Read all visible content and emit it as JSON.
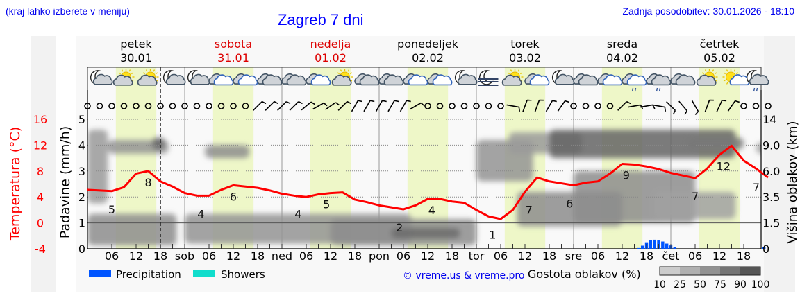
{
  "header": {
    "hint": "(kraj lahko izberete v meniju)",
    "title": "Zagreb 7 dni",
    "updated": "Zadnja posodobitev: 30.01.2026 - 18:10"
  },
  "days": [
    {
      "name": "petek",
      "date": "30.01",
      "weekend": false
    },
    {
      "name": "sobota",
      "date": "31.01",
      "weekend": true
    },
    {
      "name": "nedelja",
      "date": "01.02",
      "weekend": true
    },
    {
      "name": "ponedeljek",
      "date": "02.02",
      "weekend": false
    },
    {
      "name": "torek",
      "date": "03.02",
      "weekend": false
    },
    {
      "name": "sreda",
      "date": "04.02",
      "weekend": false
    },
    {
      "name": "četrtek",
      "date": "05.02",
      "weekend": false
    }
  ],
  "weather_icons": [
    "night-partly-cloudy",
    "sun-cloud",
    "sun-cloud",
    "night-partly-cloudy",
    "night-partly-cloudy",
    "cloudy",
    "cloudy",
    "overcast",
    "overcast",
    "cloudy",
    "sun-cloud",
    "overcast",
    "overcast",
    "cloudy",
    "cloudy",
    "night-partly-cloudy",
    "night-fog",
    "sun-cloud",
    "cloudy",
    "night-partly-cloudy",
    "overcast",
    "cloudy",
    "cloudy-drizzle",
    "overcast-drizzle",
    "overcast",
    "sun-cloud",
    "sun-small-cloud",
    "night-cloud-drizzle"
  ],
  "wind": [
    "calm",
    "calm",
    "calm",
    "calm",
    "calm",
    "calm",
    "calm",
    "calm",
    "calm",
    "calm",
    "calm",
    "calm",
    "calm",
    "calm",
    45,
    45,
    45,
    45,
    50,
    60,
    55,
    45,
    30,
    30,
    30,
    30,
    30,
    60,
    "calm",
    "calm",
    "calm",
    "calm",
    "calm",
    "calm",
    "calm",
    100,
    20,
    20,
    30,
    35,
    "calm",
    "calm",
    "calm",
    "calm",
    45,
    80,
    80,
    100,
    135,
    140,
    150,
    20,
    25,
    35,
    "calm",
    "calm",
    "calm"
  ],
  "colors": {
    "temperature": "#ff0000",
    "precipitation": "#0055ff",
    "showers": "#11ddcc",
    "daylight": "#eef7c8",
    "weekend": "#dd0000",
    "link": "#0000ee"
  },
  "chart_data": {
    "type": "line",
    "x_unit": "hour from 30.01 00:00",
    "x_tick_labels": [
      "06",
      "12",
      "18",
      "sob",
      "06",
      "12",
      "18",
      "ned",
      "06",
      "12",
      "18",
      "pon",
      "06",
      "12",
      "18",
      "tor",
      "06",
      "12",
      "18",
      "sre",
      "06",
      "12",
      "18",
      "čet",
      "06",
      "12",
      "18"
    ],
    "current_time_label_hour": 18,
    "y_left_temp": {
      "label": "Temperatura (°C)",
      "ticks": [
        16,
        12,
        8,
        4,
        0,
        -4
      ]
    },
    "y_left_precip": {
      "label": "Padavine (mm/h)",
      "ticks": [
        5,
        4,
        3,
        2,
        1,
        0
      ]
    },
    "y_right_cloud": {
      "label": "Višina oblakov (km)",
      "ticks": [
        14,
        9.0,
        6.0,
        3.5,
        1.5,
        0
      ]
    },
    "temperature": {
      "hours": [
        0,
        6,
        9,
        12,
        15,
        18,
        21,
        24,
        27,
        30,
        33,
        36,
        39,
        42,
        45,
        48,
        51,
        54,
        57,
        60,
        63,
        66,
        69,
        72,
        75,
        78,
        81,
        84,
        87,
        90,
        93,
        96,
        99,
        102,
        105,
        108,
        111,
        114,
        117,
        120,
        123,
        126,
        129,
        132,
        135,
        138,
        141,
        144,
        147,
        150,
        153,
        156,
        159,
        162,
        165,
        168
      ],
      "values": [
        5.1,
        4.9,
        5.5,
        7.6,
        8.0,
        6.4,
        5.6,
        4.6,
        4.2,
        4.2,
        5.1,
        5.8,
        5.6,
        5.4,
        5.0,
        4.5,
        4.2,
        4.0,
        4.4,
        4.6,
        4.7,
        3.6,
        3.2,
        2.7,
        2.4,
        2.1,
        2.7,
        3.7,
        3.7,
        3.3,
        3.1,
        2.0,
        1.0,
        0.6,
        2.0,
        4.8,
        7.0,
        6.4,
        6.1,
        5.8,
        6.2,
        6.4,
        7.6,
        9.1,
        9.0,
        8.7,
        8.3,
        7.7,
        7.3,
        6.9,
        8.4,
        10.5,
        11.9,
        9.6,
        8.4,
        7.0
      ]
    },
    "temperature_labels": [
      {
        "hour": 6,
        "value": "5"
      },
      {
        "hour": 15,
        "value": "8"
      },
      {
        "hour": 28,
        "value": "4"
      },
      {
        "hour": 36,
        "value": "6"
      },
      {
        "hour": 52,
        "value": "4"
      },
      {
        "hour": 59,
        "value": "5"
      },
      {
        "hour": 77,
        "value": "2"
      },
      {
        "hour": 85,
        "value": "4"
      },
      {
        "hour": 100,
        "value": "1"
      },
      {
        "hour": 109,
        "value": "7"
      },
      {
        "hour": 119,
        "value": "6"
      },
      {
        "hour": 133,
        "value": "9"
      },
      {
        "hour": 150,
        "value": "7"
      },
      {
        "hour": 157,
        "value": "12"
      },
      {
        "hour": 168,
        "value": "7"
      }
    ],
    "precipitation": {
      "hours": [
        136,
        137,
        138,
        139,
        140,
        141,
        142,
        143,
        144,
        145,
        167
      ],
      "values": [
        0.03,
        0.12,
        0.25,
        0.33,
        0.35,
        0.32,
        0.28,
        0.2,
        0.13,
        0.06,
        0.06
      ]
    },
    "cloud_density": [
      {
        "from_h": 0,
        "to_h": 22,
        "km_low": 0.2,
        "km_high": 2.2,
        "density": 55
      },
      {
        "from_h": 0,
        "to_h": 5,
        "km_low": 3,
        "km_high": 12,
        "density": 45
      },
      {
        "from_h": 5,
        "to_h": 20,
        "km_low": 8,
        "km_high": 10,
        "density": 50
      },
      {
        "from_h": 16,
        "to_h": 19,
        "km_low": 8.5,
        "km_high": 10.5,
        "density": 85
      },
      {
        "from_h": 29,
        "to_h": 40,
        "km_low": 7.5,
        "km_high": 9,
        "density": 55
      },
      {
        "from_h": 24,
        "to_h": 80,
        "km_low": 0.3,
        "km_high": 2.2,
        "density": 50
      },
      {
        "from_h": 60,
        "to_h": 96,
        "km_low": 0.2,
        "km_high": 1.8,
        "density": 55
      },
      {
        "from_h": 75,
        "to_h": 92,
        "km_low": 0.6,
        "km_high": 1.2,
        "density": 80
      },
      {
        "from_h": 96,
        "to_h": 110,
        "km_low": 5,
        "km_high": 10,
        "density": 50
      },
      {
        "from_h": 104,
        "to_h": 122,
        "km_low": 8,
        "km_high": 11.5,
        "density": 45
      },
      {
        "from_h": 106,
        "to_h": 132,
        "km_low": 1.3,
        "km_high": 4,
        "density": 55
      },
      {
        "from_h": 114,
        "to_h": 160,
        "km_low": 7.5,
        "km_high": 12,
        "density": 85
      },
      {
        "from_h": 120,
        "to_h": 150,
        "km_low": 1.5,
        "km_high": 6,
        "density": 55
      },
      {
        "from_h": 140,
        "to_h": 160,
        "km_low": 1.8,
        "km_high": 4,
        "density": 40
      },
      {
        "from_h": 148,
        "to_h": 162,
        "km_low": 8.5,
        "km_high": 10.5,
        "density": 70
      },
      {
        "from_h": 165,
        "to_h": 168,
        "km_low": 8,
        "km_high": 9.5,
        "density": 40
      }
    ],
    "daylight_hours": [
      7,
      17
    ]
  },
  "legend": {
    "precipitation": "Precipitation",
    "showers": "Showers",
    "copyright": "© vreme.us & vreme.pro",
    "density_title": "Gostota oblakov (%)",
    "density_levels": [
      "10",
      "25",
      "50",
      "75",
      "90",
      "100"
    ],
    "density_colors": [
      "#cccccc",
      "#b0b0b0",
      "#919191",
      "#747474",
      "#555555"
    ]
  }
}
